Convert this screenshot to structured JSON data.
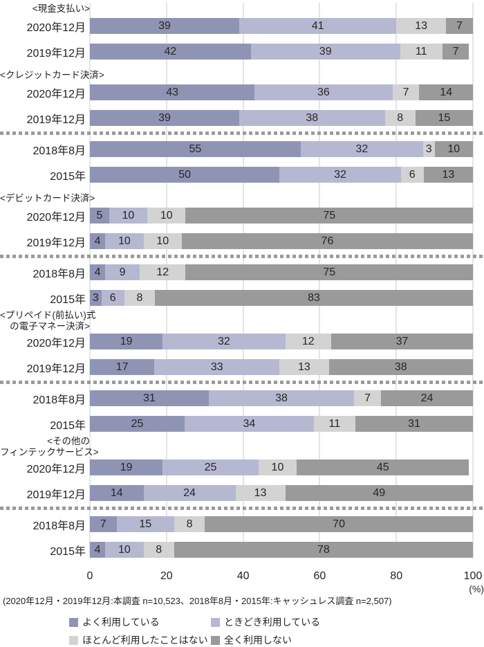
{
  "chart_data": {
    "type": "bar",
    "orientation": "horizontal",
    "stacked": true,
    "x_axis": {
      "ticks": [
        0,
        20,
        40,
        60,
        80,
        100
      ],
      "range": [
        0,
        100
      ],
      "unit_label": "(%)",
      "grid": true
    },
    "legend": {
      "position": "bottom",
      "entries": [
        {
          "label": "よく利用している",
          "color": "#9094b4"
        },
        {
          "label": "ときどき利用している",
          "color": "#b6b8d1"
        },
        {
          "label": "ほとんど利用したことはない",
          "color": "#d3d3d3"
        },
        {
          "label": "全く利用しない",
          "color": "#9a9a9a"
        }
      ]
    },
    "footnote": "(2020年12月・2019年12月:本調査 n=10,523、2018年8月・2015年:キャッシュレス調査 n=2,507)",
    "groups": [
      {
        "title_lines": [
          "<現金支払い>"
        ],
        "rows": [
          {
            "label": "2020年12月",
            "values": [
              39,
              41,
              13,
              7
            ]
          },
          {
            "label": "2019年12月",
            "values": [
              42,
              39,
              11,
              7
            ]
          }
        ]
      },
      {
        "title_lines": [
          "<クレジットカード決済>"
        ],
        "rows": [
          {
            "label": "2020年12月",
            "values": [
              43,
              36,
              7,
              14
            ]
          },
          {
            "label": "2019年12月",
            "values": [
              39,
              38,
              8,
              15
            ]
          },
          {
            "separator": true
          },
          {
            "label": "2018年8月",
            "values": [
              55,
              32,
              3,
              10
            ]
          },
          {
            "label": "2015年",
            "values": [
              50,
              32,
              6,
              13
            ]
          }
        ]
      },
      {
        "title_lines": [
          "<デビットカード決済>"
        ],
        "rows": [
          {
            "label": "2020年12月",
            "values": [
              5,
              10,
              10,
              75
            ]
          },
          {
            "label": "2019年12月",
            "values": [
              4,
              10,
              10,
              76
            ]
          },
          {
            "separator": true
          },
          {
            "label": "2018年8月",
            "values": [
              4,
              9,
              12,
              75
            ]
          },
          {
            "label": "2015年",
            "values": [
              3,
              6,
              8,
              83
            ]
          }
        ]
      },
      {
        "title_lines": [
          "<プリペイド(前払い)式",
          "の電子マネー決済>"
        ],
        "rows": [
          {
            "label": "2020年12月",
            "values": [
              19,
              32,
              12,
              37
            ]
          },
          {
            "label": "2019年12月",
            "values": [
              17,
              33,
              13,
              38
            ]
          },
          {
            "separator": true
          },
          {
            "label": "2018年8月",
            "values": [
              31,
              38,
              7,
              24
            ]
          },
          {
            "label": "2015年",
            "values": [
              25,
              34,
              11,
              31
            ]
          }
        ]
      },
      {
        "title_lines": [
          "<その他の",
          "フィンテックサービス>"
        ],
        "rows": [
          {
            "label": "2020年12月",
            "values": [
              19,
              25,
              10,
              45
            ]
          },
          {
            "label": "2019年12月",
            "values": [
              14,
              24,
              13,
              49
            ]
          },
          {
            "separator": true
          },
          {
            "label": "2018年8月",
            "values": [
              7,
              15,
              8,
              70
            ]
          },
          {
            "label": "2015年",
            "values": [
              4,
              10,
              8,
              78
            ]
          }
        ]
      }
    ]
  }
}
